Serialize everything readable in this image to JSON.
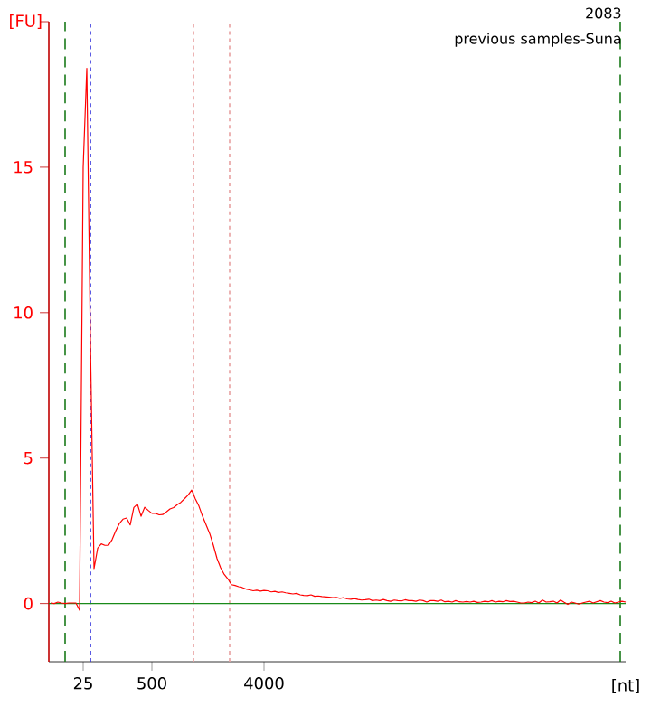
{
  "chart_data": {
    "type": "line",
    "ylabel": "[FU]",
    "xlabel": "[nt]",
    "annotations": [
      "2083",
      "previous samples-Suna"
    ],
    "categories": [
      null,
      null,
      null,
      null,
      null,
      null,
      null,
      null,
      null,
      "25",
      null,
      null,
      null,
      null,
      null,
      null,
      null,
      null,
      null,
      null,
      null,
      null,
      null,
      null,
      null,
      null,
      null,
      null,
      "500",
      null,
      null,
      null,
      null,
      null,
      null,
      null,
      null,
      null,
      null,
      null,
      null,
      null,
      null,
      null,
      null,
      null,
      null,
      null,
      null,
      null,
      null,
      null,
      null,
      null,
      null,
      null,
      null,
      null,
      null,
      "4000",
      null,
      null,
      null,
      null,
      null,
      null,
      null,
      null,
      null,
      null,
      null,
      null,
      null,
      null,
      null,
      null,
      null,
      null,
      null,
      null,
      null,
      null,
      null,
      null,
      null,
      null,
      null,
      null,
      null,
      null,
      null,
      null,
      null,
      null,
      null,
      null,
      null,
      null,
      null,
      null,
      null,
      null,
      null,
      null,
      null,
      null,
      null,
      null,
      null,
      null,
      null,
      null,
      null,
      null,
      null,
      null,
      null,
      null,
      null,
      null,
      null,
      null,
      null,
      null,
      null,
      null,
      null,
      null,
      null,
      null,
      null,
      null,
      null,
      null,
      null,
      null,
      null,
      null,
      null,
      null,
      null,
      null,
      null,
      null,
      null,
      null,
      null,
      null,
      null,
      null,
      null,
      null,
      null,
      null,
      null,
      null,
      null,
      null,
      null,
      null
    ],
    "ylim": [
      -2,
      20
    ],
    "yticks": [
      0,
      5,
      10,
      15
    ],
    "grid": false,
    "marker": "none",
    "line_style": "solid",
    "ref_lines": [
      {
        "axis": "y",
        "value": 0,
        "color": "#1a8a1a",
        "line_style": "solid"
      }
    ],
    "series": [
      {
        "color": "#ff0000",
        "values": [
          0.02,
          0,
          0.05,
          0.02,
          0,
          0.02,
          0.02,
          0.02,
          -0.23,
          15,
          18.4,
          9,
          1.2,
          1.9,
          2.05,
          2.0,
          2.0,
          2.2,
          2.5,
          2.75,
          2.9,
          2.94,
          2.7,
          3.3,
          3.42,
          3.0,
          3.31,
          3.2,
          3.1,
          3.1,
          3.05,
          3.06,
          3.15,
          3.25,
          3.3,
          3.4,
          3.48,
          3.6,
          3.73,
          3.9,
          3.6,
          3.35,
          3.0,
          2.7,
          2.4,
          2.0,
          1.55,
          1.23,
          1.0,
          0.85,
          0.65,
          0.62,
          0.58,
          0.55,
          0.5,
          0.47,
          0.44,
          0.46,
          0.43,
          0.45,
          0.44,
          0.4,
          0.42,
          0.38,
          0.4,
          0.37,
          0.35,
          0.33,
          0.35,
          0.3,
          0.28,
          0.27,
          0.3,
          0.25,
          0.26,
          0.24,
          0.23,
          0.22,
          0.2,
          0.21,
          0.18,
          0.2,
          0.16,
          0.15,
          0.17,
          0.14,
          0.12,
          0.13,
          0.15,
          0.1,
          0.12,
          0.1,
          0.14,
          0.1,
          0.08,
          0.12,
          0.1,
          0.09,
          0.13,
          0.1,
          0.1,
          0.08,
          0.12,
          0.1,
          0.05,
          0.1,
          0.1,
          0.08,
          0.12,
          0.06,
          0.08,
          0.05,
          0.1,
          0.06,
          0.05,
          0.07,
          0.05,
          0.08,
          0.04,
          0.05,
          0.08,
          0.06,
          0.1,
          0.05,
          0.08,
          0.06,
          0.1,
          0.07,
          0.08,
          0.05,
          0.02,
          0.02,
          0.05,
          0.03,
          0.08,
          0.02,
          0.12,
          0.05,
          0.06,
          0.08,
          0.02,
          0.12,
          0.04,
          -0.03,
          0.05,
          0.02,
          -0.02,
          0.02,
          0.05,
          0.08,
          0.02,
          0.06,
          0.1,
          0.05,
          0.03,
          0.08,
          0.02,
          0.05,
          0.08,
          0.05
        ]
      }
    ]
  }
}
